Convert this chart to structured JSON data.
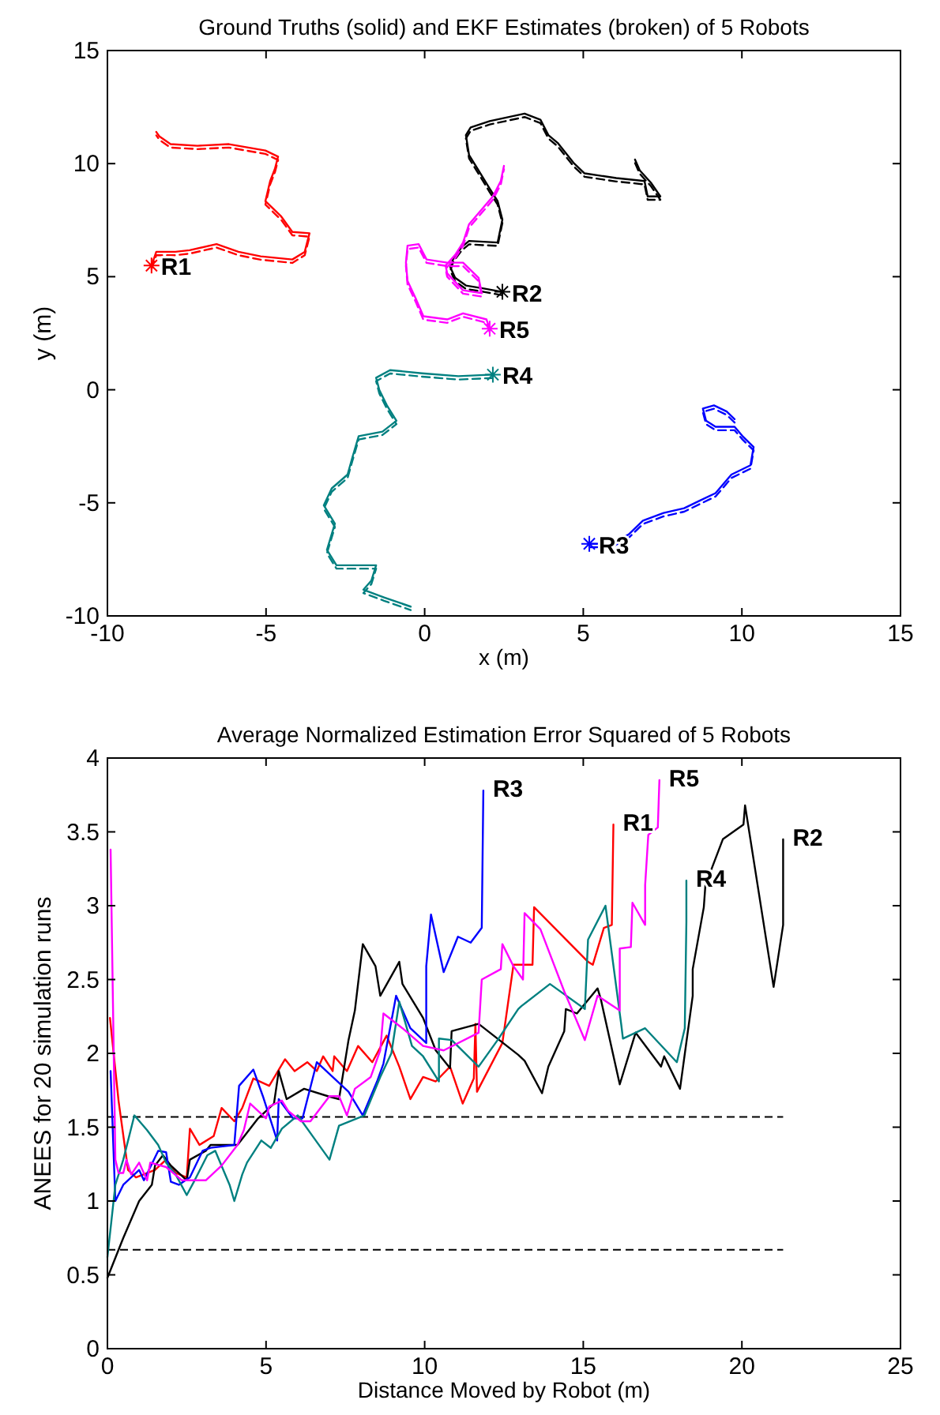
{
  "chart_data": [
    {
      "type": "line",
      "title": "Ground Truths (solid) and EKF Estimates (broken) of 5 Robots",
      "xlabel": "x (m)",
      "ylabel": "y (m)",
      "xlim": [
        -10,
        15
      ],
      "ylim": [
        -10,
        15
      ],
      "xticks": [
        -10,
        -5,
        0,
        5,
        10,
        15
      ],
      "yticks": [
        -10,
        -5,
        0,
        5,
        10,
        15
      ],
      "series": [
        {
          "color": "#ff0000",
          "line_style": "solid",
          "x": [
            -8.61,
            -8.46,
            -7.86,
            -7.41,
            -6.56,
            -5.87,
            -5.17,
            -4.17,
            -3.78,
            -3.63,
            -4.17,
            -4.52,
            -4.77,
            -5.02,
            -4.87,
            -4.72,
            -4.62,
            -5.02,
            -6.17,
            -7.16,
            -8.01,
            -8.36,
            -8.46
          ],
          "values": [
            5.49,
            6.1,
            6.1,
            6.17,
            6.44,
            6.1,
            5.9,
            5.76,
            6.1,
            6.92,
            6.98,
            7.66,
            8.0,
            8.34,
            9.23,
            9.77,
            10.31,
            10.58,
            10.86,
            10.79,
            10.86,
            11.2,
            11.4
          ]
        },
        {
          "color": "#ff0000",
          "line_style": "dashed",
          "x": [
            -8.61,
            -8.46,
            -7.86,
            -7.41,
            -6.56,
            -5.87,
            -5.17,
            -4.17,
            -3.78,
            -3.63,
            -4.17,
            -4.52,
            -4.77,
            -5.02,
            -4.87,
            -4.72,
            -4.62,
            -5.02,
            -6.17,
            -7.16,
            -8.01,
            -8.36,
            -8.46
          ],
          "values": [
            5.34,
            5.95,
            5.95,
            6.02,
            6.29,
            5.95,
            5.75,
            5.61,
            5.95,
            6.77,
            6.83,
            7.51,
            7.85,
            8.19,
            9.08,
            9.62,
            10.16,
            10.43,
            10.71,
            10.64,
            10.71,
            11.05,
            11.25
          ]
        },
        {
          "color": "#000000",
          "line_style": "solid",
          "x": [
            2.45,
            1.9,
            1.3,
            0.96,
            0.81,
            0.91,
            1.16,
            1.4,
            2.3,
            2.45,
            2.3,
            2.05,
            1.7,
            1.4,
            1.3,
            1.45,
            2.05,
            3.15,
            3.65,
            3.9,
            4.19,
            4.69,
            5.04,
            6.04,
            6.93,
            7.03,
            7.43,
            7.13,
            6.78,
            6.63
          ],
          "values": [
            4.33,
            4.47,
            4.61,
            4.95,
            5.42,
            5.83,
            6.3,
            6.58,
            6.51,
            7.53,
            8.34,
            8.89,
            9.7,
            10.38,
            11.26,
            11.6,
            11.88,
            12.21,
            11.94,
            11.26,
            10.92,
            10.04,
            9.57,
            9.36,
            9.23,
            8.55,
            8.55,
            9.16,
            9.7,
            10.18
          ]
        },
        {
          "color": "#000000",
          "line_style": "dashed",
          "x": [
            2.45,
            1.9,
            1.3,
            0.96,
            0.81,
            0.91,
            1.16,
            1.4,
            2.3,
            2.45,
            2.3,
            2.05,
            1.7,
            1.4,
            1.3,
            1.45,
            2.05,
            3.15,
            3.65,
            3.9,
            4.19,
            4.69,
            5.04,
            6.04,
            6.93,
            7.03,
            7.43,
            7.13,
            6.78,
            6.63
          ],
          "values": [
            4.18,
            4.32,
            4.46,
            4.8,
            5.27,
            5.68,
            6.15,
            6.43,
            6.36,
            7.38,
            8.19,
            8.74,
            9.55,
            10.23,
            11.11,
            11.45,
            11.73,
            12.06,
            11.79,
            11.11,
            10.77,
            9.89,
            9.42,
            9.21,
            9.08,
            8.4,
            8.4,
            9.01,
            9.55,
            10.03
          ]
        },
        {
          "color": "#0000ff",
          "line_style": "solid",
          "x": [
            5.19,
            5.89,
            6.43,
            6.88,
            7.53,
            8.18,
            8.68,
            9.17,
            9.67,
            10.27,
            10.37,
            10.02,
            9.77,
            9.17,
            8.87,
            8.77,
            9.12,
            9.52,
            9.77
          ],
          "values": [
            -6.81,
            -6.81,
            -6.4,
            -5.79,
            -5.45,
            -5.24,
            -4.9,
            -4.57,
            -3.75,
            -3.34,
            -2.53,
            -2.05,
            -1.64,
            -1.64,
            -1.37,
            -0.83,
            -0.69,
            -0.96,
            -1.3
          ]
        },
        {
          "color": "#0000ff",
          "line_style": "dashed",
          "x": [
            5.19,
            5.89,
            6.43,
            6.88,
            7.53,
            8.18,
            8.68,
            9.17,
            9.67,
            10.27,
            10.37,
            10.02,
            9.77,
            9.17,
            8.87,
            8.77,
            9.12,
            9.52,
            9.77
          ],
          "values": [
            -6.96,
            -6.96,
            -6.55,
            -5.94,
            -5.6,
            -5.39,
            -5.05,
            -4.72,
            -3.9,
            -3.49,
            -2.68,
            -2.2,
            -1.79,
            -1.79,
            -1.52,
            -0.98,
            -0.84,
            -1.11,
            -1.45
          ]
        },
        {
          "color": "#008080",
          "line_style": "solid",
          "x": [
            2.15,
            1.06,
            -0.09,
            -1.09,
            -1.53,
            -1.43,
            -1.19,
            -0.89,
            -1.33,
            -2.08,
            -2.28,
            -2.43,
            -2.93,
            -3.18,
            -2.83,
            -3.08,
            -2.78,
            -1.53,
            -1.68,
            -1.93,
            -1.28,
            -0.44
          ],
          "values": [
            0.67,
            0.6,
            0.73,
            0.87,
            0.53,
            -0.01,
            -0.69,
            -1.37,
            -1.85,
            -2.05,
            -3.0,
            -3.75,
            -4.36,
            -5.11,
            -5.92,
            -7.08,
            -7.76,
            -7.76,
            -8.44,
            -8.84,
            -9.18,
            -9.59
          ]
        },
        {
          "color": "#008080",
          "line_style": "dashed",
          "x": [
            2.15,
            1.06,
            -0.09,
            -1.09,
            -1.53,
            -1.43,
            -1.19,
            -0.89,
            -1.33,
            -2.08,
            -2.28,
            -2.43,
            -2.93,
            -3.18,
            -2.83,
            -3.08,
            -2.78,
            -1.53,
            -1.68,
            -1.93,
            -1.28,
            -0.44
          ],
          "values": [
            0.52,
            0.45,
            0.58,
            0.72,
            0.38,
            -0.16,
            -0.84,
            -1.52,
            -2.0,
            -2.2,
            -3.15,
            -3.9,
            -4.51,
            -5.26,
            -6.07,
            -7.23,
            -7.91,
            -7.91,
            -8.59,
            -8.99,
            -9.33,
            -9.74
          ]
        },
        {
          "color": "#ff00ff",
          "line_style": "solid",
          "x": [
            2.05,
            1.95,
            1.21,
            0.71,
            -0.04,
            -0.29,
            -0.54,
            -0.59,
            -0.54,
            -0.19,
            0.06,
            0.71,
            1.21,
            1.7,
            1.8,
            1.21,
            0.71,
            0.66,
            0.96,
            1.21,
            1.4,
            2.15,
            2.4,
            2.5
          ],
          "values": [
            2.7,
            3.11,
            3.38,
            3.11,
            3.25,
            4.06,
            4.81,
            5.62,
            6.37,
            6.44,
            5.76,
            5.62,
            5.62,
            4.95,
            4.27,
            4.4,
            5.15,
            5.49,
            5.96,
            6.51,
            7.32,
            8.55,
            9.23,
            9.9
          ]
        },
        {
          "color": "#ff00ff",
          "line_style": "dashed",
          "x": [
            2.05,
            1.95,
            1.21,
            0.71,
            -0.04,
            -0.29,
            -0.54,
            -0.59,
            -0.54,
            -0.19,
            0.06,
            0.71,
            1.21,
            1.7,
            1.8,
            1.21,
            0.71,
            0.66,
            0.96,
            1.21,
            1.4,
            2.15,
            2.4,
            2.5
          ],
          "values": [
            2.55,
            2.96,
            3.23,
            2.96,
            3.1,
            3.91,
            4.66,
            5.47,
            6.22,
            6.29,
            5.61,
            5.47,
            5.47,
            4.8,
            4.12,
            4.25,
            5.0,
            5.34,
            5.81,
            6.36,
            7.17,
            8.4,
            9.08,
            9.75
          ]
        },
        {
          "type": "scatter",
          "marker": "cross",
          "color": "#ff0000",
          "x": [
            -8.61
          ],
          "values": [
            5.49
          ]
        },
        {
          "type": "scatter",
          "marker": "cross",
          "color": "#000000",
          "x": [
            2.45
          ],
          "values": [
            4.33
          ]
        },
        {
          "type": "scatter",
          "marker": "cross",
          "color": "#0000ff",
          "x": [
            5.19
          ],
          "values": [
            -6.81
          ]
        },
        {
          "type": "scatter",
          "marker": "cross",
          "color": "#008080",
          "x": [
            2.15
          ],
          "values": [
            0.67
          ]
        },
        {
          "type": "scatter",
          "marker": "cross",
          "color": "#ff00ff",
          "x": [
            2.05
          ],
          "values": [
            2.7
          ]
        }
      ],
      "annotations": [
        {
          "text": "R1",
          "x": -8.61,
          "y": 5.49
        },
        {
          "text": "R2",
          "x": 2.45,
          "y": 4.33
        },
        {
          "text": "R3",
          "x": 5.19,
          "y": -6.81
        },
        {
          "text": "R4",
          "x": 2.15,
          "y": 0.67
        },
        {
          "text": "R5",
          "x": 2.05,
          "y": 2.7
        }
      ]
    },
    {
      "type": "line",
      "title": "Average Normalized Estimation Error Squared of 5 Robots",
      "xlabel": "Distance Moved by Robot (m)",
      "ylabel": "ANEES for 20 simulation runs",
      "xlim": [
        0,
        25
      ],
      "ylim": [
        0,
        4
      ],
      "xticks": [
        0,
        5,
        10,
        15,
        20,
        25
      ],
      "yticks": [
        0,
        0.5,
        1,
        1.5,
        2,
        2.5,
        3,
        3.5,
        4
      ],
      "ref_lines": [
        {
          "axis": "y",
          "value": 0.67,
          "color": "#000000",
          "line_style": "dashed"
        },
        {
          "axis": "y",
          "value": 1.57,
          "color": "#000000",
          "line_style": "dashed"
        }
      ],
      "series": [
        {
          "color": "#ff0000",
          "x": [
            0.08,
            0.35,
            0.65,
            0.9,
            1.5,
            1.85,
            2.15,
            2.5,
            2.6,
            2.9,
            3.35,
            3.6,
            4.0,
            4.25,
            4.6,
            5.1,
            5.6,
            5.9,
            6.3,
            6.6,
            6.8,
            7.1,
            7.15,
            7.55,
            7.9,
            8.35,
            8.8,
            9.2,
            9.55,
            9.95,
            10.35,
            10.8,
            11.2,
            11.55,
            11.6,
            11.65,
            12.45,
            12.8,
            13.4,
            13.45,
            15.15,
            15.3,
            15.65,
            15.9,
            15.95
          ],
          "values": [
            2.24,
            1.68,
            1.21,
            1.16,
            1.21,
            1.28,
            1.19,
            1.16,
            1.49,
            1.38,
            1.44,
            1.63,
            1.54,
            1.63,
            1.83,
            1.78,
            1.96,
            1.88,
            1.94,
            1.88,
            1.98,
            1.88,
            1.98,
            1.88,
            2.05,
            1.94,
            2.12,
            1.91,
            1.69,
            1.84,
            1.81,
            1.91,
            1.66,
            1.83,
            2.2,
            1.74,
            2.07,
            2.6,
            2.6,
            2.99,
            2.62,
            2.6,
            2.85,
            2.87,
            3.55
          ]
        },
        {
          "color": "#000000",
          "x": [
            0,
            0.5,
            1.0,
            1.4,
            1.5,
            1.75,
            2.0,
            2.5,
            2.6,
            3.1,
            3.25,
            4.1,
            4.75,
            5.25,
            5.4,
            5.65,
            6.2,
            6.95,
            7.3,
            7.6,
            7.8,
            8.05,
            8.45,
            8.6,
            9.2,
            9.3,
            9.95,
            10.35,
            10.8,
            10.85,
            11.7,
            12.95,
            13.15,
            13.7,
            13.9,
            14.4,
            14.45,
            14.8,
            15.45,
            15.55,
            16.15,
            16.65,
            17.45,
            17.55,
            18.05,
            18.45,
            18.45,
            18.8,
            18.85,
            19.4,
            20.05,
            20.1,
            21.0,
            21.3,
            21.3
          ],
          "values": [
            0.48,
            0.75,
            1.0,
            1.11,
            1.24,
            1.31,
            1.24,
            1.14,
            1.28,
            1.34,
            1.38,
            1.38,
            1.56,
            1.66,
            1.88,
            1.69,
            1.76,
            1.71,
            1.69,
            2.09,
            2.29,
            2.74,
            2.59,
            2.39,
            2.62,
            2.47,
            2.24,
            2.02,
            1.9,
            2.15,
            2.2,
            1.99,
            1.95,
            1.73,
            1.91,
            2.15,
            2.3,
            2.27,
            2.44,
            2.37,
            1.79,
            2.14,
            1.91,
            1.98,
            1.76,
            2.39,
            2.57,
            2.99,
            3.14,
            3.45,
            3.55,
            3.68,
            2.45,
            2.87,
            3.45
          ]
        },
        {
          "color": "#0000ff",
          "x": [
            0.1,
            0.25,
            0.5,
            1.0,
            1.15,
            1.6,
            1.85,
            2.0,
            2.25,
            2.6,
            3.0,
            3.25,
            4.0,
            4.15,
            4.6,
            4.9,
            5.35,
            5.4,
            5.85,
            6.15,
            6.6,
            7.1,
            7.6,
            8.05,
            8.5,
            8.7,
            9.1,
            9.55,
            10.05,
            10.05,
            10.2,
            10.6,
            11.05,
            11.45,
            11.8,
            11.85
          ],
          "values": [
            1.88,
            1.0,
            1.11,
            1.21,
            1.14,
            1.34,
            1.33,
            1.13,
            1.11,
            1.16,
            1.34,
            1.36,
            1.38,
            1.78,
            1.89,
            1.71,
            1.41,
            1.69,
            1.56,
            1.56,
            1.94,
            1.84,
            1.74,
            1.58,
            1.81,
            1.93,
            2.39,
            2.17,
            2.07,
            2.59,
            2.94,
            2.55,
            2.79,
            2.75,
            2.85,
            3.78
          ]
        },
        {
          "color": "#008080",
          "x": [
            0,
            0.25,
            0.5,
            0.85,
            1.25,
            1.6,
            1.85,
            2.15,
            2.5,
            2.75,
            3.15,
            3.4,
            3.85,
            4.0,
            4.25,
            4.4,
            4.85,
            5.15,
            5.5,
            6.0,
            6.5,
            7.0,
            7.3,
            8.1,
            8.6,
            8.95,
            9.2,
            9.6,
            9.95,
            10.45,
            10.45,
            10.85,
            11.7,
            12.3,
            12.95,
            13.05,
            13.95,
            15.05,
            15.15,
            15.7,
            16.2,
            16.25,
            16.95,
            17.95,
            18.2,
            18.25,
            18.25
          ],
          "values": [
            0.62,
            1.11,
            1.28,
            1.58,
            1.48,
            1.38,
            1.26,
            1.18,
            1.04,
            1.14,
            1.31,
            1.34,
            1.11,
            1.0,
            1.18,
            1.26,
            1.41,
            1.36,
            1.49,
            1.58,
            1.43,
            1.28,
            1.51,
            1.58,
            1.84,
            2.0,
            2.35,
            2.05,
            1.98,
            1.81,
            2.1,
            2.09,
            1.91,
            2.09,
            2.3,
            2.32,
            2.47,
            2.3,
            2.77,
            3.0,
            2.19,
            2.1,
            2.17,
            1.94,
            2.17,
            2.89,
            3.17
          ]
        },
        {
          "color": "#ff00ff",
          "x": [
            0.1,
            0.25,
            0.35,
            0.5,
            0.6,
            0.75,
            1.0,
            1.25,
            1.35,
            1.85,
            2.35,
            3.1,
            3.6,
            4.1,
            4.3,
            4.5,
            5.0,
            5.1,
            5.5,
            5.7,
            6.1,
            6.4,
            7.0,
            7.3,
            7.55,
            7.8,
            8.3,
            8.6,
            8.7,
            9.3,
            9.95,
            10.6,
            11.7,
            11.8,
            12.4,
            12.45,
            12.8,
            13.1,
            13.15,
            13.65,
            14.4,
            15.05,
            15.45,
            16.15,
            16.15,
            16.5,
            16.55,
            16.95,
            16.95,
            17.05,
            17.35,
            17.4
          ],
          "values": [
            3.38,
            1.28,
            1.19,
            1.19,
            1.28,
            1.18,
            1.26,
            1.14,
            1.26,
            1.23,
            1.14,
            1.14,
            1.24,
            1.38,
            1.48,
            1.66,
            1.56,
            1.64,
            1.68,
            1.61,
            1.54,
            1.54,
            1.71,
            1.71,
            1.58,
            1.76,
            1.84,
            2.02,
            2.27,
            2.17,
            2.05,
            2.02,
            2.14,
            2.5,
            2.57,
            2.74,
            2.59,
            2.5,
            2.95,
            2.84,
            2.42,
            2.09,
            2.39,
            2.29,
            2.71,
            2.72,
            3.02,
            2.87,
            3.14,
            3.48,
            3.53,
            3.85
          ]
        }
      ],
      "annotations": [
        {
          "text": "R1",
          "x": 15.95,
          "y": 3.55
        },
        {
          "text": "R2",
          "x": 21.3,
          "y": 3.45
        },
        {
          "text": "R3",
          "x": 11.85,
          "y": 3.78
        },
        {
          "text": "R4",
          "x": 18.25,
          "y": 3.17
        },
        {
          "text": "R5",
          "x": 17.4,
          "y": 3.85
        }
      ]
    }
  ]
}
